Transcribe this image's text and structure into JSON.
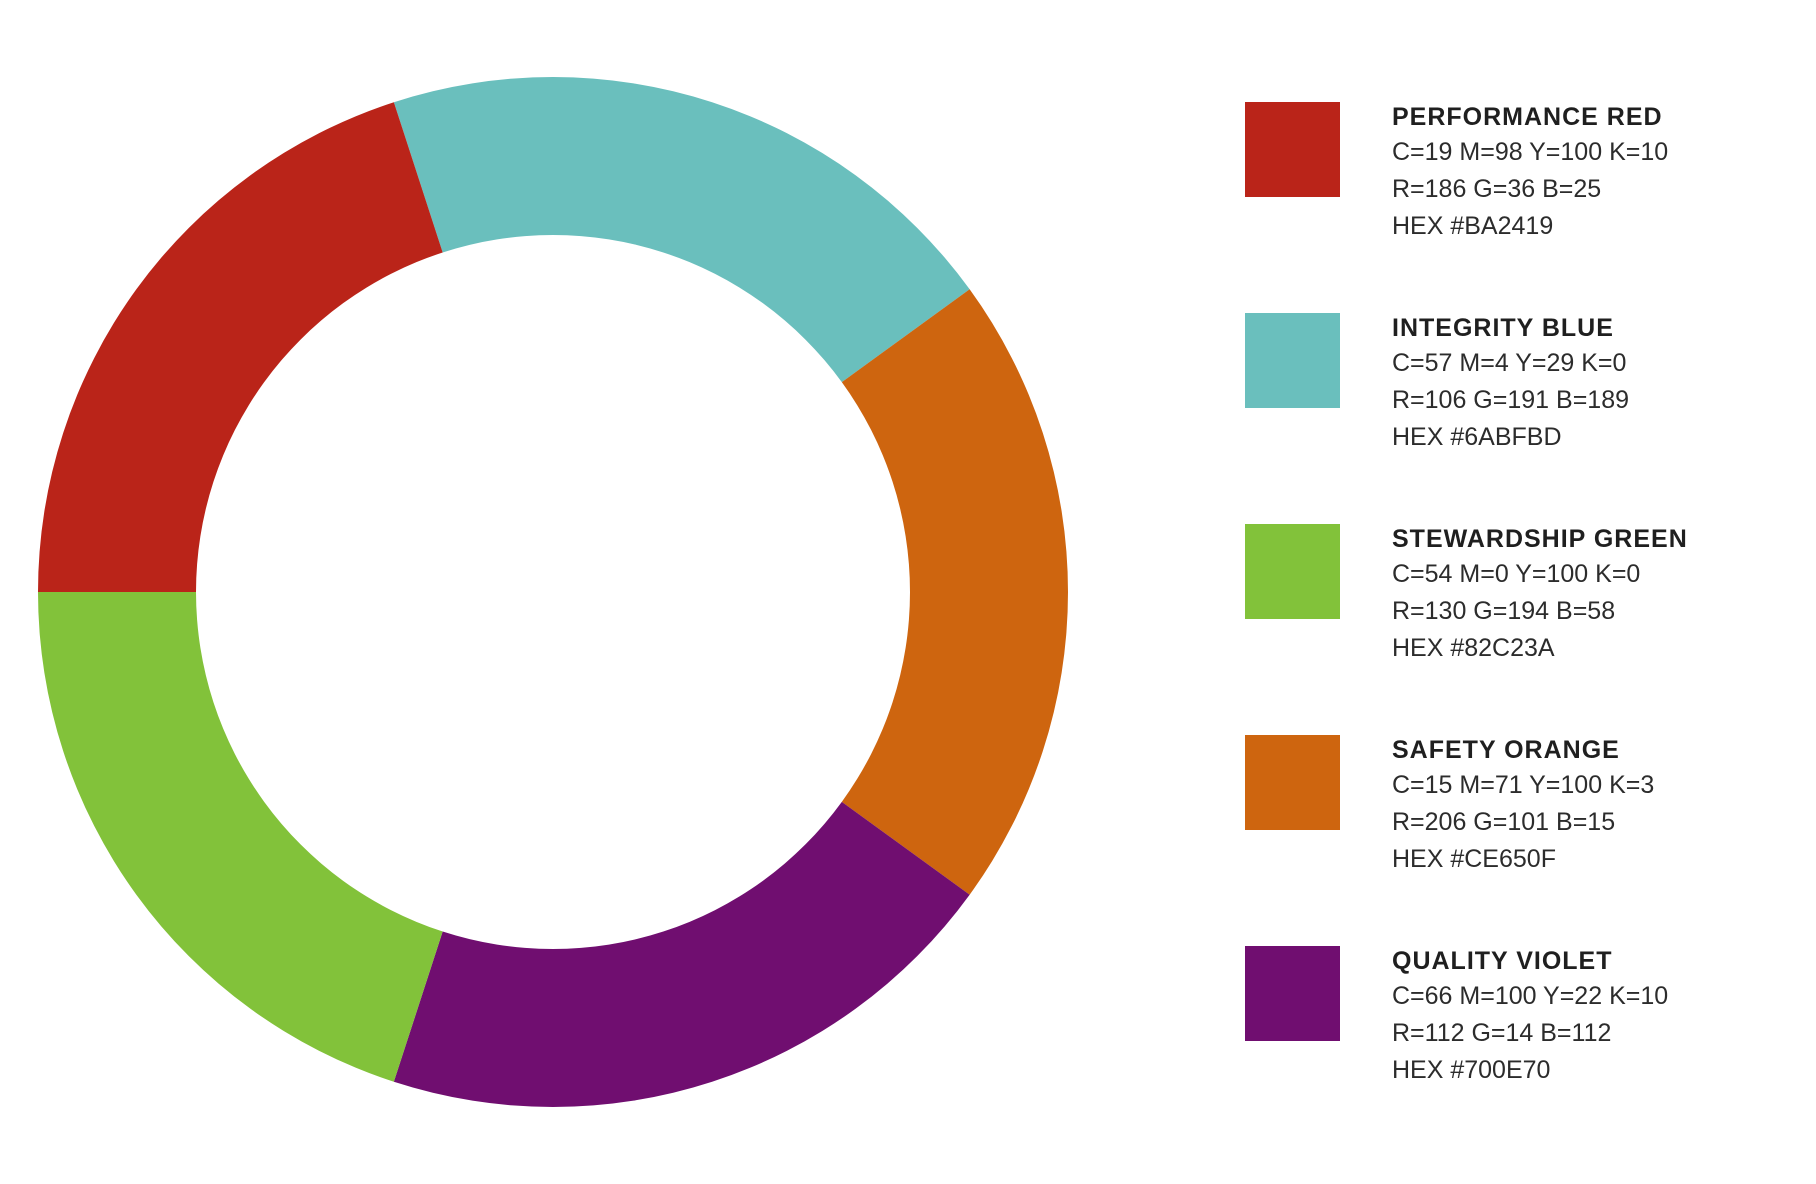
{
  "chart_data": {
    "type": "pie",
    "title": "",
    "slices": [
      {
        "name": "PERFORMANCE RED",
        "value": 20,
        "color": "#BA2419",
        "cmyk": "C=19 M=98 Y=100 K=10",
        "rgb": "R=186 G=36 B=25",
        "hex": "HEX #BA2419"
      },
      {
        "name": "INTEGRITY BLUE",
        "value": 20,
        "color": "#6ABFBD",
        "cmyk": "C=57 M=4 Y=29 K=0",
        "rgb": "R=106 G=191 B=189",
        "hex": "HEX #6ABFBD"
      },
      {
        "name": "STEWARDSHIP GREEN",
        "value": 20,
        "color": "#82C23A",
        "cmyk": "C=54 M=0 Y=100 K=0",
        "rgb": "R=130 G=194 B=58",
        "hex": "HEX #82C23A"
      },
      {
        "name": "SAFETY ORANGE",
        "value": 20,
        "color": "#CE650F",
        "cmyk": "C=15 M=71 Y=100 K=3",
        "rgb": "R=206 G=101 B=15",
        "hex": "HEX #CE650F"
      },
      {
        "name": "QUALITY VIOLET",
        "value": 20,
        "color": "#700E70",
        "cmyk": "C=66 M=100 Y=22 K=10",
        "rgb": "R=112 G=14 B=112",
        "hex": "HEX #700E70"
      }
    ],
    "ring_order": [
      "INTEGRITY BLUE",
      "SAFETY ORANGE",
      "QUALITY VIOLET",
      "STEWARDSHIP GREEN",
      "PERFORMANCE RED"
    ],
    "legend_position": "right",
    "donut": true
  }
}
